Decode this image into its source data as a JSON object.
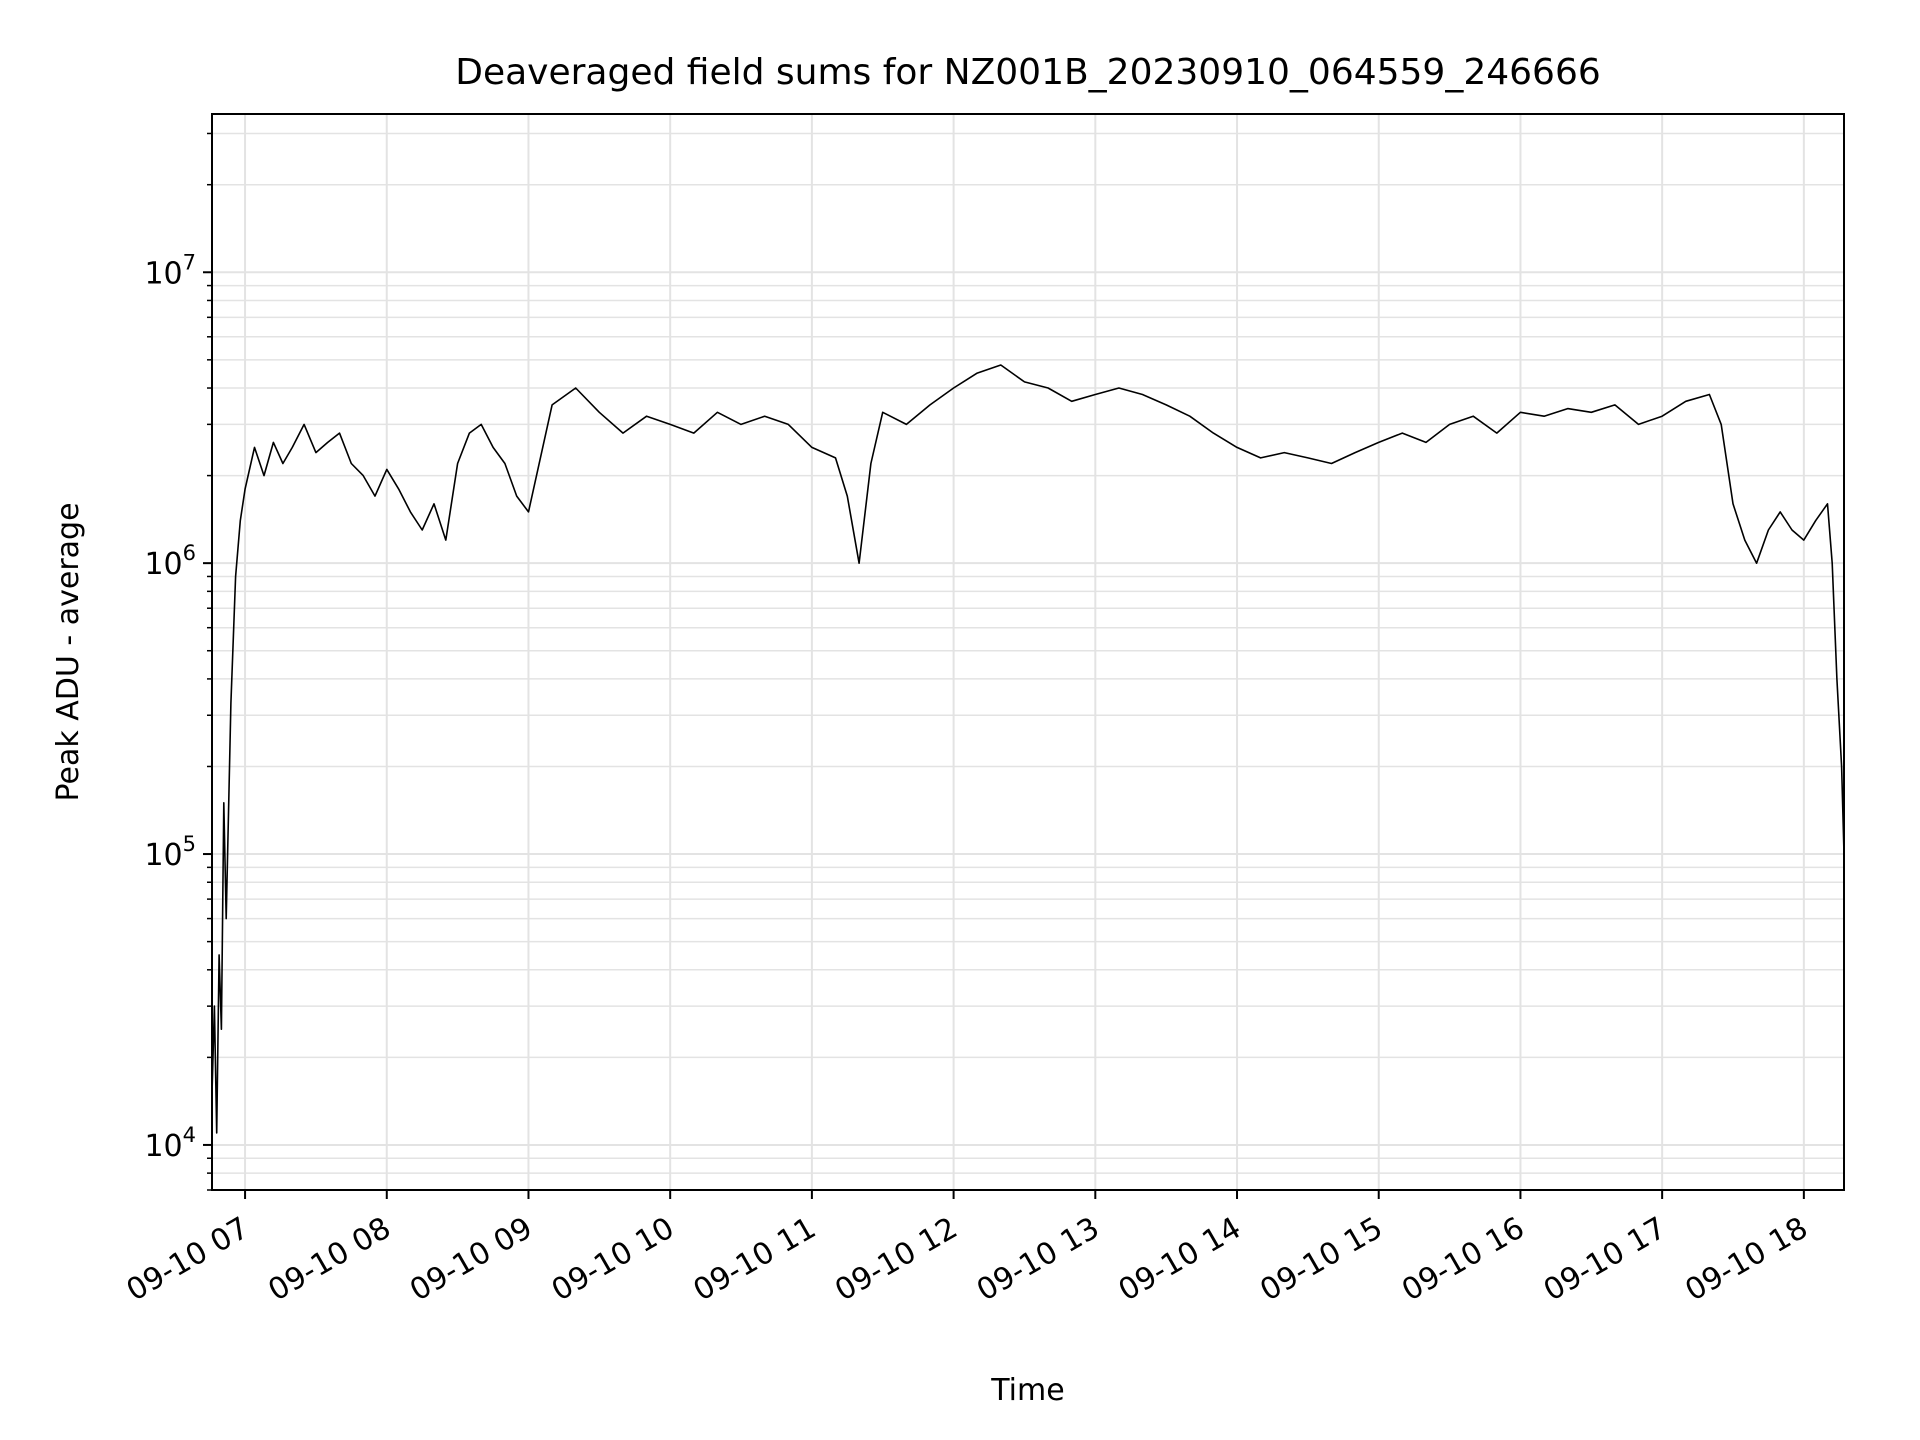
{
  "chart_data": {
    "type": "line",
    "title": "Deaveraged field sums for NZ001B_20230910_064559_246666",
    "xlabel": "Time",
    "ylabel": "Peak ADU - average",
    "yscale": "log",
    "ylim": [
      7000,
      35000000
    ],
    "xlim": [
      "2023-09-10 06:46",
      "2023-09-10 18:17"
    ],
    "grid": true,
    "line_color": "#000000",
    "grid_color": "#e3e3e3",
    "x_ticks": [
      {
        "label": "09-10 07",
        "time": "2023-09-10 07:00"
      },
      {
        "label": "09-10 08",
        "time": "2023-09-10 08:00"
      },
      {
        "label": "09-10 09",
        "time": "2023-09-10 09:00"
      },
      {
        "label": "09-10 10",
        "time": "2023-09-10 10:00"
      },
      {
        "label": "09-10 11",
        "time": "2023-09-10 11:00"
      },
      {
        "label": "09-10 12",
        "time": "2023-09-10 12:00"
      },
      {
        "label": "09-10 13",
        "time": "2023-09-10 13:00"
      },
      {
        "label": "09-10 14",
        "time": "2023-09-10 14:00"
      },
      {
        "label": "09-10 15",
        "time": "2023-09-10 15:00"
      },
      {
        "label": "09-10 16",
        "time": "2023-09-10 16:00"
      },
      {
        "label": "09-10 17",
        "time": "2023-09-10 17:00"
      },
      {
        "label": "09-10 18",
        "time": "2023-09-10 18:00"
      }
    ],
    "y_ticks": [
      {
        "base": "10",
        "exp": "4",
        "value": 10000
      },
      {
        "base": "10",
        "exp": "5",
        "value": 100000
      },
      {
        "base": "10",
        "exp": "6",
        "value": 1000000
      },
      {
        "base": "10",
        "exp": "7",
        "value": 10000000
      }
    ],
    "series": [
      {
        "x": [
          "2023-09-10 06:46",
          "2023-09-10 06:47",
          "2023-09-10 06:48",
          "2023-09-10 06:49",
          "2023-09-10 06:50",
          "2023-09-10 06:51",
          "2023-09-10 06:52",
          "2023-09-10 06:54",
          "2023-09-10 06:56",
          "2023-09-10 06:58",
          "2023-09-10 07:00",
          "2023-09-10 07:04",
          "2023-09-10 07:08",
          "2023-09-10 07:12",
          "2023-09-10 07:16",
          "2023-09-10 07:20",
          "2023-09-10 07:25",
          "2023-09-10 07:30",
          "2023-09-10 07:35",
          "2023-09-10 07:40",
          "2023-09-10 07:45",
          "2023-09-10 07:50",
          "2023-09-10 07:55",
          "2023-09-10 08:00",
          "2023-09-10 08:05",
          "2023-09-10 08:10",
          "2023-09-10 08:15",
          "2023-09-10 08:20",
          "2023-09-10 08:25",
          "2023-09-10 08:30",
          "2023-09-10 08:35",
          "2023-09-10 08:40",
          "2023-09-10 08:45",
          "2023-09-10 08:50",
          "2023-09-10 08:55",
          "2023-09-10 09:00",
          "2023-09-10 09:10",
          "2023-09-10 09:20",
          "2023-09-10 09:30",
          "2023-09-10 09:40",
          "2023-09-10 09:50",
          "2023-09-10 10:00",
          "2023-09-10 10:10",
          "2023-09-10 10:20",
          "2023-09-10 10:30",
          "2023-09-10 10:40",
          "2023-09-10 10:50",
          "2023-09-10 11:00",
          "2023-09-10 11:10",
          "2023-09-10 11:15",
          "2023-09-10 11:20",
          "2023-09-10 11:25",
          "2023-09-10 11:30",
          "2023-09-10 11:40",
          "2023-09-10 11:50",
          "2023-09-10 12:00",
          "2023-09-10 12:10",
          "2023-09-10 12:20",
          "2023-09-10 12:30",
          "2023-09-10 12:40",
          "2023-09-10 12:50",
          "2023-09-10 13:00",
          "2023-09-10 13:10",
          "2023-09-10 13:20",
          "2023-09-10 13:30",
          "2023-09-10 13:40",
          "2023-09-10 13:50",
          "2023-09-10 14:00",
          "2023-09-10 14:10",
          "2023-09-10 14:20",
          "2023-09-10 14:30",
          "2023-09-10 14:40",
          "2023-09-10 14:50",
          "2023-09-10 15:00",
          "2023-09-10 15:10",
          "2023-09-10 15:20",
          "2023-09-10 15:30",
          "2023-09-10 15:40",
          "2023-09-10 15:50",
          "2023-09-10 16:00",
          "2023-09-10 16:10",
          "2023-09-10 16:20",
          "2023-09-10 16:30",
          "2023-09-10 16:40",
          "2023-09-10 16:50",
          "2023-09-10 17:00",
          "2023-09-10 17:10",
          "2023-09-10 17:20",
          "2023-09-10 17:25",
          "2023-09-10 17:30",
          "2023-09-10 17:35",
          "2023-09-10 17:40",
          "2023-09-10 17:45",
          "2023-09-10 17:50",
          "2023-09-10 17:55",
          "2023-09-10 18:00",
          "2023-09-10 18:05",
          "2023-09-10 18:10",
          "2023-09-10 18:12",
          "2023-09-10 18:14",
          "2023-09-10 18:16",
          "2023-09-10 18:17"
        ],
        "y": [
          15000,
          30000,
          11000,
          45000,
          25000,
          150000,
          60000,
          330000,
          900000,
          1400000,
          1800000,
          2500000,
          2000000,
          2600000,
          2200000,
          2500000,
          3000000,
          2400000,
          2600000,
          2800000,
          2200000,
          2000000,
          1700000,
          2100000,
          1800000,
          1500000,
          1300000,
          1600000,
          1200000,
          2200000,
          2800000,
          3000000,
          2500000,
          2200000,
          1700000,
          1500000,
          3500000,
          4000000,
          3300000,
          2800000,
          3200000,
          3000000,
          2800000,
          3300000,
          3000000,
          3200000,
          3000000,
          2500000,
          2300000,
          1700000,
          1000000,
          2200000,
          3300000,
          3000000,
          3500000,
          4000000,
          4500000,
          4800000,
          4200000,
          4000000,
          3600000,
          3800000,
          4000000,
          3800000,
          3500000,
          3200000,
          2800000,
          2500000,
          2300000,
          2400000,
          2300000,
          2200000,
          2400000,
          2600000,
          2800000,
          2600000,
          3000000,
          3200000,
          2800000,
          3300000,
          3200000,
          3400000,
          3300000,
          3500000,
          3000000,
          3200000,
          3600000,
          3800000,
          3000000,
          1600000,
          1200000,
          1000000,
          1300000,
          1500000,
          1300000,
          1200000,
          1400000,
          1600000,
          1000000,
          400000,
          200000,
          100000
        ]
      }
    ]
  }
}
